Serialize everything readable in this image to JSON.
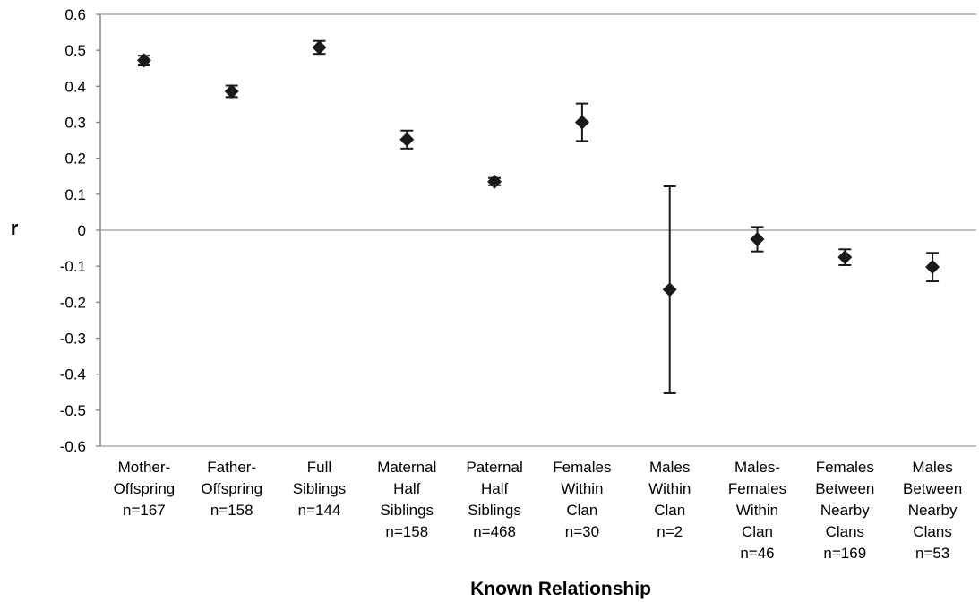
{
  "chart_data": {
    "type": "scatter",
    "title": "",
    "xlabel": "Known Relationship",
    "ylabel": "r",
    "ylim": [
      -0.6,
      0.6
    ],
    "yticks": [
      "0.6",
      "0.5",
      "0.4",
      "0.3",
      "0.2",
      "0.1",
      "0",
      "-0.1",
      "-0.2",
      "-0.3",
      "-0.4",
      "-0.5",
      "-0.6"
    ],
    "grid": false,
    "legend": "none",
    "marker": "diamond",
    "color": "#1a1a1a",
    "categories": [
      {
        "lines": [
          "Mother-",
          "Offspring",
          "n=167"
        ]
      },
      {
        "lines": [
          "Father-",
          "Offspring",
          "n=158"
        ]
      },
      {
        "lines": [
          "Full",
          "Siblings",
          "n=144"
        ]
      },
      {
        "lines": [
          "Maternal",
          "Half",
          "Siblings",
          "n=158"
        ]
      },
      {
        "lines": [
          "Paternal",
          "Half",
          "Siblings",
          "n=468"
        ]
      },
      {
        "lines": [
          "Females",
          "Within",
          "Clan",
          "n=30"
        ]
      },
      {
        "lines": [
          "Males",
          "Within",
          "Clan",
          "n=2"
        ]
      },
      {
        "lines": [
          "Males-",
          "Females",
          "Within",
          "Clan",
          "n=46"
        ]
      },
      {
        "lines": [
          "Females",
          "Between",
          "Nearby",
          "Clans",
          "n=169"
        ]
      },
      {
        "lines": [
          "Males",
          "Between",
          "Nearby",
          "Clans",
          "n=53"
        ]
      }
    ],
    "points": [
      {
        "y": 0.472,
        "lo": 0.458,
        "hi": 0.485
      },
      {
        "y": 0.386,
        "lo": 0.37,
        "hi": 0.402
      },
      {
        "y": 0.508,
        "lo": 0.49,
        "hi": 0.526
      },
      {
        "y": 0.252,
        "lo": 0.227,
        "hi": 0.277
      },
      {
        "y": 0.135,
        "lo": 0.125,
        "hi": 0.145
      },
      {
        "y": 0.3,
        "lo": 0.248,
        "hi": 0.352
      },
      {
        "y": -0.165,
        "lo": -0.453,
        "hi": 0.122
      },
      {
        "y": -0.025,
        "lo": -0.059,
        "hi": 0.009
      },
      {
        "y": -0.075,
        "lo": -0.097,
        "hi": -0.053
      },
      {
        "y": -0.102,
        "lo": -0.142,
        "hi": -0.063
      }
    ]
  }
}
